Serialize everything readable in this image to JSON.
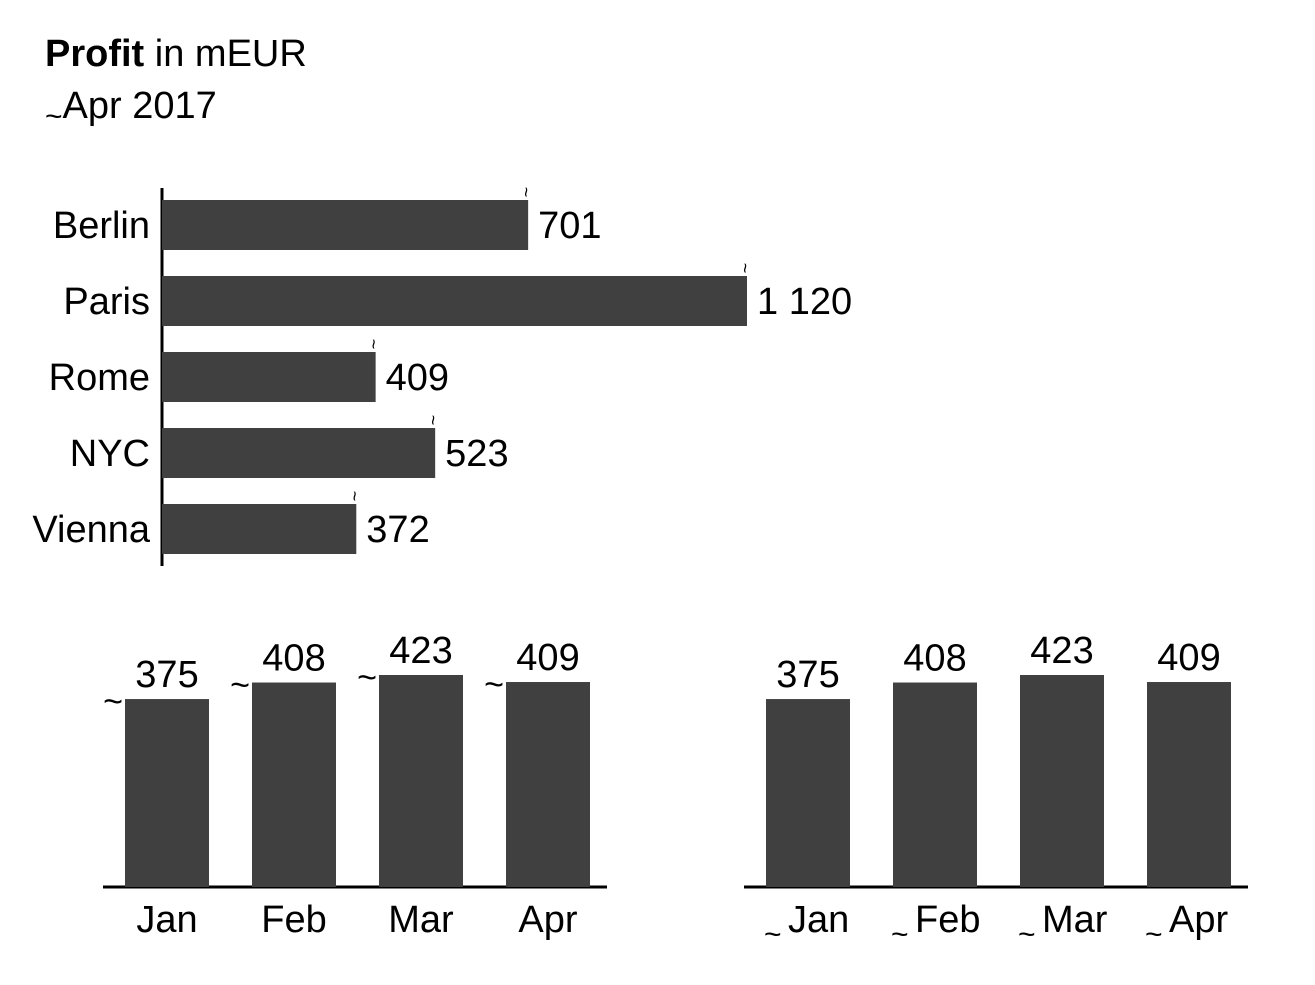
{
  "header": {
    "title_bold": "Profit",
    "title_rest": " in mEUR",
    "subtitle_mark": "~",
    "subtitle": "Apr 2017"
  },
  "colors": {
    "bar": "#404040",
    "axis": "#000000"
  },
  "chart_data": [
    {
      "type": "bar",
      "orientation": "horizontal",
      "categories": [
        "Berlin",
        "Paris",
        "Rome",
        "NYC",
        "Vienna"
      ],
      "values": [
        701,
        1120,
        409,
        523,
        372
      ],
      "value_labels": [
        "701",
        "1 120",
        "409",
        "523",
        "372"
      ],
      "value_marks": [
        "~",
        "~",
        "~",
        "~",
        "~"
      ]
    },
    {
      "type": "bar",
      "categories": [
        "Jan",
        "Feb",
        "Mar",
        "Apr"
      ],
      "values": [
        375,
        408,
        423,
        409
      ],
      "value_labels": [
        "375",
        "408",
        "423",
        "409"
      ],
      "value_marks": [
        "~",
        "~",
        "~",
        "~"
      ]
    },
    {
      "type": "bar",
      "categories": [
        "Jan",
        "Feb",
        "Mar",
        "Apr"
      ],
      "category_marks": [
        "~",
        "~",
        "~",
        "~"
      ],
      "values": [
        375,
        408,
        423,
        409
      ],
      "value_labels": [
        "375",
        "408",
        "423",
        "409"
      ]
    }
  ]
}
